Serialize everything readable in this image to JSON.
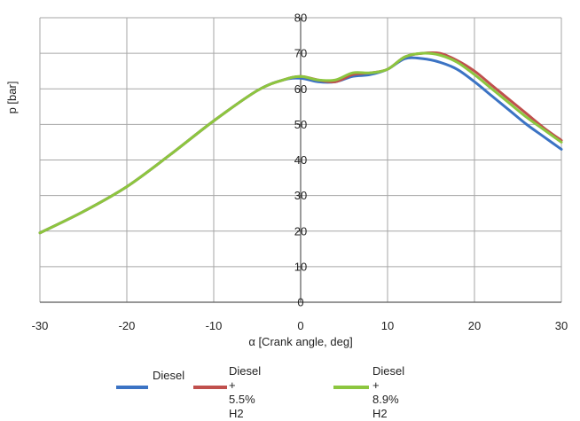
{
  "chart_data": {
    "type": "line",
    "title": "",
    "xlabel": "α [Crank angle, deg]",
    "ylabel": "p [bar]",
    "xlim": [
      -30,
      30
    ],
    "ylim": [
      0,
      80
    ],
    "xticks": [
      -30,
      -20,
      -10,
      0,
      10,
      20,
      30
    ],
    "yticks": [
      0,
      10,
      20,
      30,
      40,
      50,
      60,
      70,
      80
    ],
    "grid": true,
    "legend_position": "bottom",
    "series": [
      {
        "name": "Diesel",
        "color": "#3b73c4",
        "x": [
          -30,
          -25,
          -20,
          -15,
          -10,
          -5,
          -2,
          0,
          2,
          4,
          6,
          8,
          10,
          12,
          14,
          16,
          18,
          20,
          22,
          24,
          26,
          28,
          30
        ],
        "y": [
          19.5,
          25.5,
          32.5,
          41.5,
          51,
          59.5,
          62.5,
          63,
          62,
          62,
          63.5,
          64,
          65.5,
          68.5,
          68.5,
          67.5,
          65.5,
          62,
          58,
          54,
          50,
          46.5,
          43
        ]
      },
      {
        "name": "Diesel + 5.5% H2",
        "color": "#c0504d",
        "x": [
          -30,
          -25,
          -20,
          -15,
          -10,
          -5,
          -2,
          0,
          2,
          4,
          6,
          8,
          10,
          12,
          14,
          16,
          18,
          20,
          22,
          24,
          26,
          28,
          30
        ],
        "y": [
          19.5,
          25.5,
          32.5,
          41.5,
          51,
          59.5,
          62.5,
          63.5,
          62.5,
          62,
          64,
          64.5,
          65.5,
          69,
          70,
          70,
          68,
          65,
          61,
          57,
          53,
          49,
          45.5
        ]
      },
      {
        "name": "Diesel + 8.9% H2",
        "color": "#8cc63f",
        "x": [
          -30,
          -25,
          -20,
          -15,
          -10,
          -5,
          -2,
          0,
          2,
          4,
          6,
          8,
          10,
          12,
          14,
          16,
          18,
          20,
          22,
          24,
          26,
          28,
          30
        ],
        "y": [
          19.5,
          25.5,
          32.5,
          41.5,
          51,
          59.5,
          62.5,
          63.5,
          62.5,
          62.5,
          64.5,
          64.5,
          65.5,
          69,
          70,
          69.5,
          67.5,
          64,
          60,
          56,
          52,
          48.5,
          45
        ]
      }
    ]
  },
  "legend": {
    "items": [
      {
        "label": "Diesel",
        "color": "#3b73c4"
      },
      {
        "label": "Diesel\n+ 5.5% H2",
        "color": "#c0504d"
      },
      {
        "label": "Diesel\n+ 8.9% H2",
        "color": "#8cc63f"
      }
    ]
  }
}
